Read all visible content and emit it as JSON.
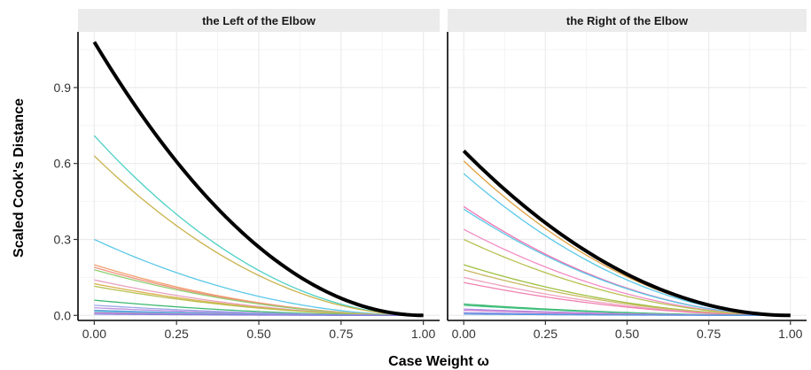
{
  "chart_data": {
    "type": "line",
    "xlabel": "Case Weight ω",
    "ylabel": "Scaled Cook's Distance",
    "xlim": [
      0,
      1
    ],
    "ylim": [
      -0.02,
      1.12
    ],
    "x_ticks": [
      "0.00",
      "0.25",
      "0.50",
      "0.75",
      "1.00"
    ],
    "y_ticks": [
      "0.0",
      "0.3",
      "0.6",
      "0.9"
    ],
    "grid": true,
    "legend": "none",
    "panels": [
      {
        "title": "the Left of the Elbow",
        "highlight": {
          "color": "#000000",
          "start": 1.08
        },
        "series": [
          {
            "color": "#4dd0c4",
            "start": 0.71
          },
          {
            "color": "#c8b14a",
            "start": 0.63
          },
          {
            "color": "#5bc8e8",
            "start": 0.3
          },
          {
            "color": "#f0a070",
            "start": 0.2
          },
          {
            "color": "#f29080",
            "start": 0.19
          },
          {
            "color": "#8fcf70",
            "start": 0.18
          },
          {
            "color": "#e8a0c0",
            "start": 0.14
          },
          {
            "color": "#d9b04a",
            "start": 0.125
          },
          {
            "color": "#b8c050",
            "start": 0.115
          },
          {
            "color": "#3cb870",
            "start": 0.06
          },
          {
            "color": "#9aa8e8",
            "start": 0.04
          },
          {
            "color": "#c090e0",
            "start": 0.03
          },
          {
            "color": "#5a9ae0",
            "start": 0.02
          },
          {
            "color": "#60c0d0",
            "start": 0.015
          },
          {
            "color": "#d080d0",
            "start": 0.01
          },
          {
            "color": "#8080e0",
            "start": 0.005
          }
        ]
      },
      {
        "title": "the Right of the Elbow",
        "highlight": {
          "color": "#000000",
          "start": 0.65
        },
        "series": [
          {
            "color": "#e0a040",
            "start": 0.61
          },
          {
            "color": "#5bc8e8",
            "start": 0.56
          },
          {
            "color": "#f070b0",
            "start": 0.43
          },
          {
            "color": "#5bc8e8",
            "start": 0.42
          },
          {
            "color": "#f48cc4",
            "start": 0.34
          },
          {
            "color": "#b8c050",
            "start": 0.3
          },
          {
            "color": "#a0c040",
            "start": 0.2
          },
          {
            "color": "#c8b860",
            "start": 0.18
          },
          {
            "color": "#f0a0c0",
            "start": 0.15
          },
          {
            "color": "#f080b0",
            "start": 0.13
          },
          {
            "color": "#3cb870",
            "start": 0.045
          },
          {
            "color": "#40c080",
            "start": 0.04
          },
          {
            "color": "#b090e0",
            "start": 0.025
          },
          {
            "color": "#d080d0",
            "start": 0.02
          },
          {
            "color": "#8080e0",
            "start": 0.01
          },
          {
            "color": "#5a9ae0",
            "start": 0.005
          }
        ]
      }
    ]
  }
}
